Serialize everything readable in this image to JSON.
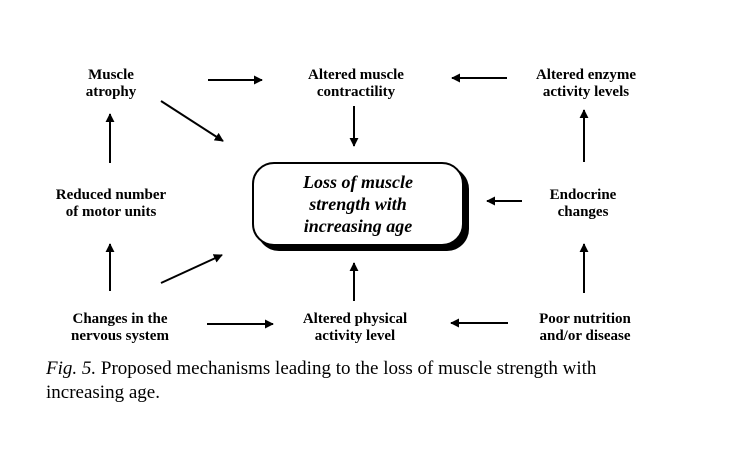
{
  "diagram": {
    "center": {
      "lines": [
        "Loss of muscle",
        "strength with",
        "increasing age"
      ]
    },
    "nodes": {
      "muscle_atrophy": [
        "Muscle",
        "atrophy"
      ],
      "altered_contractility": [
        "Altered muscle",
        "contractility"
      ],
      "altered_enzyme": [
        "Altered enzyme",
        "activity levels"
      ],
      "reduced_motor_units": [
        "Reduced number",
        "of motor units"
      ],
      "endocrine": [
        "Endocrine",
        "changes"
      ],
      "nervous_system": [
        "Changes in the",
        "nervous system"
      ],
      "physical_activity": [
        "Altered physical",
        "activity level"
      ],
      "poor_nutrition": [
        "Poor nutrition",
        "and/or disease"
      ]
    }
  },
  "caption": {
    "label": "Fig. 5.",
    "text": " Proposed mechanisms leading to the loss of muscle strength with increasing age."
  }
}
